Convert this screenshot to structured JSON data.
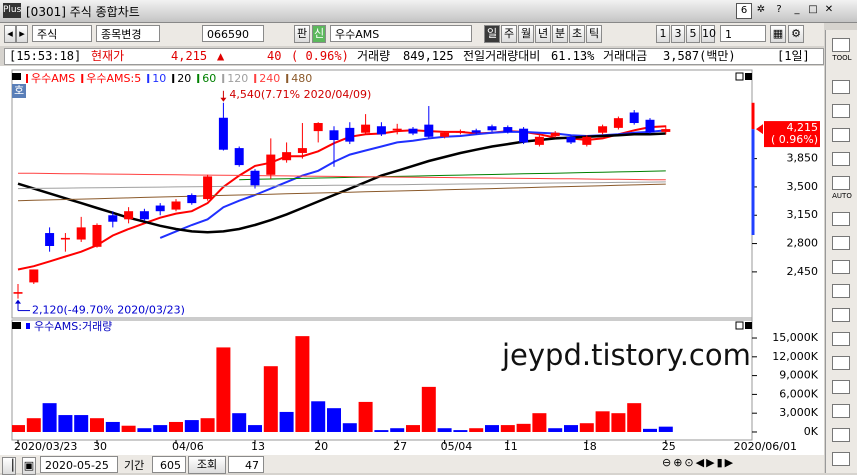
{
  "window": {
    "title": "[0301] 주식 종합차트",
    "badge": "6"
  },
  "toolbar": {
    "market": "주식",
    "change_button": "종목변경",
    "code": "066590",
    "pan": "판",
    "sin": "신",
    "name": "우수AMS",
    "periods": [
      "일",
      "주",
      "월",
      "년",
      "분",
      "초",
      "틱"
    ],
    "intervals": [
      "1",
      "3",
      "5",
      "10"
    ],
    "count": "1"
  },
  "info": {
    "time": "[15:53:18]",
    "price_label": "현재가",
    "price": "4,215",
    "arrow": "▲",
    "change": "40",
    "change_pct": "( 0.96%)",
    "volume_label": "거래량",
    "volume": "849,125",
    "prev_ratio_label": "전일거래량대비",
    "prev_ratio": "61.13%",
    "amount_label": "거래대금",
    "amount": "3,587(백만)",
    "period": "[1일]"
  },
  "left_tool": "호",
  "sidebar": [
    "TOOL",
    "AUTO"
  ],
  "watermark": "jeypd.tistory.com",
  "footer": {
    "date": "2020-05-25",
    "period_label": "기간",
    "period": "605",
    "query": "조회",
    "count": "47"
  },
  "chart_data": [
    {
      "type": "candlestick",
      "name": "우수AMS",
      "up_color": "#ff0000",
      "down_color": "#0000ff",
      "open": [
        2180,
        2320,
        2930,
        2850,
        2850,
        2760,
        3150,
        3100,
        3200,
        3270,
        3220,
        3400,
        3350,
        4355,
        3980,
        3700,
        3650,
        3830,
        3920,
        4190,
        4200,
        4230,
        4170,
        4250,
        4200,
        4220,
        4270,
        4120,
        4170,
        4200,
        4250,
        4240,
        4220,
        4020,
        4130,
        4120,
        4020,
        4170,
        4230,
        4420,
        4330,
        4180
      ],
      "high": [
        2300,
        2480,
        3000,
        2930,
        3130,
        3050,
        3200,
        3250,
        3230,
        3300,
        3350,
        3420,
        3650,
        4540,
        4000,
        3720,
        4100,
        4050,
        4290,
        4300,
        4250,
        4300,
        4400,
        4300,
        4280,
        4240,
        4500,
        4190,
        4210,
        4220,
        4270,
        4260,
        4240,
        4140,
        4190,
        4140,
        4140,
        4270,
        4370,
        4450,
        4350,
        4260
      ],
      "low": [
        2120,
        2300,
        2700,
        2700,
        2820,
        2750,
        3000,
        3050,
        3080,
        3150,
        3200,
        3280,
        3330,
        3950,
        3750,
        3480,
        3600,
        3800,
        3850,
        4050,
        3750,
        4030,
        4150,
        4130,
        4150,
        4140,
        4100,
        4100,
        4150,
        4150,
        4180,
        4160,
        4030,
        4000,
        4110,
        4030,
        4000,
        4150,
        4210,
        4270,
        4160,
        4150
      ],
      "close": [
        2200,
        2480,
        2770,
        2870,
        3000,
        3030,
        3070,
        3200,
        3100,
        3200,
        3320,
        3300,
        3630,
        3960,
        3770,
        3520,
        3900,
        3930,
        3980,
        4290,
        4080,
        4060,
        4270,
        4150,
        4220,
        4160,
        4120,
        4170,
        4190,
        4170,
        4200,
        4180,
        4050,
        4120,
        4170,
        4050,
        4120,
        4250,
        4350,
        4290,
        4175,
        4215
      ],
      "ma": [
        {
          "name": "우수AMS:5",
          "color": "#ff0000",
          "values": [
            2480,
            2520,
            2580,
            2640,
            2700,
            2780,
            2900,
            2980,
            3050,
            3120,
            3170,
            3200,
            3300,
            3500,
            3640,
            3760,
            3800,
            3880,
            3880,
            3940,
            4040,
            4120,
            4150,
            4160,
            4190,
            4200,
            4190,
            4180,
            4180,
            4160,
            4170,
            4190,
            4180,
            4150,
            4110,
            4100,
            4080,
            4100,
            4150,
            4200,
            4240,
            4250
          ]
        },
        {
          "name": "10",
          "color": "#2030ff",
          "values": [
            null,
            null,
            null,
            null,
            null,
            null,
            null,
            null,
            null,
            2870,
            2950,
            3030,
            3100,
            3250,
            3330,
            3400,
            3480,
            3560,
            3640,
            3700,
            3810,
            3900,
            3950,
            4000,
            4050,
            4070,
            4100,
            4120,
            4130,
            4150,
            4170,
            4180,
            4180,
            4170,
            4160,
            4140,
            4130,
            4140,
            4150,
            4170,
            4180,
            4200
          ]
        },
        {
          "name": "20",
          "color": "#000000",
          "values": [
            3540,
            3480,
            3420,
            3360,
            3300,
            3240,
            3180,
            3120,
            3070,
            3020,
            2980,
            2950,
            2940,
            2950,
            2980,
            3030,
            3090,
            3160,
            3240,
            3320,
            3400,
            3480,
            3560,
            3640,
            3700,
            3760,
            3820,
            3870,
            3920,
            3960,
            4000,
            4030,
            4060,
            4080,
            4100,
            4110,
            4120,
            4130,
            4140,
            4150,
            4150,
            4160
          ]
        },
        {
          "name": "60",
          "color": "#008000",
          "values": [
            null,
            null,
            null,
            null,
            null,
            null,
            null,
            null,
            null,
            null,
            null,
            null,
            null,
            null,
            3590,
            3594,
            3598,
            3602,
            3606,
            3610,
            3614,
            3618,
            3622,
            3626,
            3630,
            3634,
            3638,
            3642,
            3646,
            3650,
            3654,
            3658,
            3662,
            3666,
            3670,
            3674,
            3678,
            3682,
            3686,
            3690,
            3694,
            3698
          ]
        },
        {
          "name": "120",
          "color": "#a0a0a0",
          "values": [
            3480,
            3482,
            3484,
            3486,
            3488,
            3490,
            3492,
            3494,
            3496,
            3498,
            3500,
            3502,
            3504,
            3506,
            3508,
            3510,
            3512,
            3514,
            3516,
            3518,
            3520,
            3522,
            3524,
            3526,
            3528,
            3530,
            3532,
            3534,
            3536,
            3538,
            3540,
            3542,
            3544,
            3546,
            3548,
            3550,
            3552,
            3554,
            3556,
            3558,
            3560,
            3562
          ]
        },
        {
          "name": "240",
          "color": "#ff4040",
          "values": [
            3670,
            3668,
            3666,
            3664,
            3662,
            3660,
            3658,
            3656,
            3654,
            3652,
            3650,
            3648,
            3646,
            3644,
            3642,
            3640,
            3638,
            3636,
            3634,
            3632,
            3630,
            3628,
            3626,
            3624,
            3622,
            3620,
            3618,
            3616,
            3614,
            3612,
            3610,
            3608,
            3606,
            3604,
            3602,
            3600,
            3598,
            3596,
            3594,
            3592,
            3590,
            3588
          ]
        },
        {
          "name": "480",
          "color": "#8b5a2b",
          "values": [
            3330,
            3335,
            3340,
            3345,
            3350,
            3355,
            3360,
            3365,
            3370,
            3375,
            3380,
            3385,
            3390,
            3395,
            3400,
            3405,
            3410,
            3415,
            3420,
            3425,
            3430,
            3435,
            3440,
            3445,
            3450,
            3455,
            3460,
            3465,
            3470,
            3475,
            3480,
            3485,
            3490,
            3495,
            3500,
            3505,
            3510,
            3515,
            3520,
            3525,
            3530,
            3535
          ]
        }
      ],
      "ylim": [
        1880,
        4970
      ],
      "yticks": [
        {
          "value": 2450,
          "label": "2,450"
        },
        {
          "value": 2800,
          "label": "2,800"
        },
        {
          "value": 3150,
          "label": "3,150"
        },
        {
          "value": 3500,
          "label": "3,500"
        },
        {
          "value": 3850,
          "label": "3,850"
        }
      ],
      "high_label": "4,540(7.71% 2020/04/09)",
      "low_label": "2,120(-49.70% 2020/03/23)",
      "last_label": "4,215",
      "last_change_label": "( 0.96%)"
    },
    {
      "type": "bar",
      "title": "우수AMS:거래량",
      "values": [
        1100,
        2200,
        4600,
        2700,
        2700,
        2200,
        1600,
        1000,
        600,
        1100,
        1600,
        1900,
        2200,
        13500,
        3000,
        1100,
        10500,
        3200,
        15300,
        4900,
        3800,
        1400,
        4800,
        300,
        600,
        1100,
        7200,
        600,
        300,
        600,
        1100,
        1100,
        1300,
        3000,
        600,
        1100,
        1400,
        3300,
        3000,
        4600,
        500,
        850
      ],
      "colors": [
        "#ff0000",
        "#ff0000",
        "#0000ff",
        "#0000ff",
        "#0000ff",
        "#ff0000",
        "#0000ff",
        "#ff0000",
        "#0000ff",
        "#0000ff",
        "#ff0000",
        "#0000ff",
        "#ff0000",
        "#ff0000",
        "#0000ff",
        "#0000ff",
        "#ff0000",
        "#0000ff",
        "#ff0000",
        "#0000ff",
        "#0000ff",
        "#0000ff",
        "#ff0000",
        "#0000ff",
        "#0000ff",
        "#ff0000",
        "#ff0000",
        "#0000ff",
        "#0000ff",
        "#ff0000",
        "#0000ff",
        "#ff0000",
        "#ff0000",
        "#ff0000",
        "#0000ff",
        "#0000ff",
        "#ff0000",
        "#ff0000",
        "#ff0000",
        "#ff0000",
        "#0000ff",
        "#0000ff"
      ],
      "ylim": [
        -1280,
        16280
      ],
      "yticks": [
        {
          "value": 0,
          "label": "0K"
        },
        {
          "value": 3000,
          "label": "3,000K"
        },
        {
          "value": 6000,
          "label": "6,000K"
        },
        {
          "value": 9000,
          "label": "9,000K"
        },
        {
          "value": 12000,
          "label": "12,000K"
        },
        {
          "value": 15000,
          "label": "15,000K"
        }
      ],
      "categories": [
        "2020/03/23",
        null,
        null,
        null,
        null,
        "30",
        null,
        null,
        null,
        null,
        "04/06",
        null,
        null,
        null,
        null,
        "13",
        null,
        null,
        null,
        "20",
        null,
        null,
        null,
        null,
        "27",
        null,
        null,
        "05/04",
        null,
        null,
        null,
        "11",
        null,
        null,
        null,
        null,
        "18",
        null,
        null,
        null,
        null,
        "25"
      ],
      "x_end_label": "2020/06/01"
    }
  ]
}
